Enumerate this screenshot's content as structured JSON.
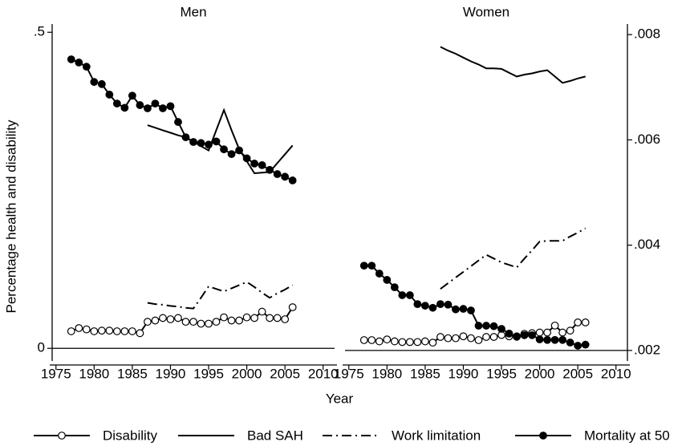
{
  "chart_data": [
    {
      "type": "line",
      "title": "Men",
      "x_label": "Year",
      "y_label": "Percentage health and disability",
      "x": [
        1977,
        1978,
        1979,
        1980,
        1981,
        1982,
        1983,
        1984,
        1985,
        1986,
        1987,
        1988,
        1989,
        1990,
        1991,
        1992,
        1993,
        1994,
        1995,
        1996,
        1997,
        1998,
        1999,
        2000,
        2001,
        2002,
        2003,
        2004,
        2005,
        2006
      ],
      "xlim": [
        1974.5,
        2011.5
      ],
      "xticks": [
        1975,
        1980,
        1985,
        1990,
        1995,
        2000,
        2005,
        2010
      ],
      "ylim": [
        -0.02,
        0.513
      ],
      "yticks": [
        {
          "value": 0.5,
          "label": ".5"
        },
        0
      ],
      "hline": 0,
      "series": [
        {
          "name": "Disability",
          "color": "#000000",
          "marker": "hollow",
          "dash": "solid",
          "values": [
            0.027,
            0.032,
            0.03,
            0.027,
            0.028,
            0.028,
            0.027,
            0.027,
            0.027,
            0.024,
            0.042,
            0.044,
            0.048,
            0.046,
            0.048,
            0.042,
            0.042,
            0.039,
            0.039,
            0.042,
            0.049,
            0.044,
            0.044,
            0.049,
            0.048,
            0.058,
            0.048,
            0.048,
            0.046,
            0.065
          ]
        },
        {
          "name": "Bad SAH",
          "color": "#000000",
          "marker": "none",
          "dash": "solid",
          "values": [
            null,
            null,
            null,
            null,
            null,
            null,
            null,
            null,
            null,
            null,
            0.353,
            0.349,
            0.345,
            0.341,
            0.337,
            0.334,
            0.327,
            0.32,
            0.313,
            0.345,
            0.377,
            0.345,
            0.315,
            0.296,
            0.277,
            0.278,
            0.279,
            0.293,
            0.307,
            0.321
          ]
        },
        {
          "name": "Work limitation",
          "color": "#000000",
          "marker": "none",
          "dash": "dash-dot",
          "values": [
            null,
            null,
            null,
            null,
            null,
            null,
            null,
            null,
            null,
            null,
            0.072,
            0.07,
            0.069,
            0.067,
            0.066,
            0.064,
            0.063,
            0.08,
            0.098,
            0.094,
            0.09,
            0.095,
            0.1,
            0.105,
            0.097,
            0.088,
            0.08,
            0.087,
            0.093,
            0.1
          ]
        },
        {
          "name": "Mortality at 50",
          "color": "#000000",
          "marker": "filled",
          "dash": "solid",
          "axis": "y2",
          "values": [
            0.00753,
            0.00747,
            0.00739,
            0.0071,
            0.00706,
            0.00686,
            0.00669,
            0.00661,
            0.00684,
            0.00666,
            0.0066,
            0.00669,
            0.0066,
            0.00664,
            0.00634,
            0.00605,
            0.00596,
            0.00594,
            0.00591,
            0.00597,
            0.00582,
            0.00573,
            0.0058,
            0.00565,
            0.00555,
            0.00552,
            0.00543,
            0.00535,
            0.0053,
            0.00523
          ]
        }
      ]
    },
    {
      "type": "line",
      "title": "Women",
      "x": [
        1977,
        1978,
        1979,
        1980,
        1981,
        1982,
        1983,
        1984,
        1985,
        1986,
        1987,
        1988,
        1989,
        1990,
        1991,
        1992,
        1993,
        1994,
        1995,
        1996,
        1997,
        1998,
        1999,
        2000,
        2001,
        2002,
        2003,
        2004,
        2005,
        2006
      ],
      "xlim": [
        1974.5,
        2011.5
      ],
      "xticks": [
        1975,
        1980,
        1985,
        1990,
        1995,
        2000,
        2005,
        2010
      ],
      "y2lim": [
        0.0018,
        0.0082
      ],
      "y2ticks": [
        {
          "value": 0.008,
          "label": ".008"
        },
        {
          "value": 0.006,
          "label": ".006"
        },
        {
          "value": 0.004,
          "label": ".004"
        },
        {
          "value": 0.002,
          "label": ".002"
        }
      ],
      "hline2": 0.002,
      "series": [
        {
          "color": "#000000",
          "marker": "hollow",
          "dash": "solid",
          "values": [
            0.013,
            0.013,
            0.011,
            0.014,
            0.011,
            0.01,
            0.01,
            0.01,
            0.011,
            0.009,
            0.018,
            0.016,
            0.016,
            0.019,
            0.016,
            0.013,
            0.018,
            0.018,
            0.021,
            0.019,
            0.019,
            0.023,
            0.024,
            0.025,
            0.025,
            0.036,
            0.025,
            0.028,
            0.041,
            0.041
          ]
        },
        {
          "color": "#000000",
          "marker": "none",
          "dash": "solid",
          "values": [
            null,
            null,
            null,
            null,
            null,
            null,
            null,
            null,
            null,
            null,
            0.477,
            0.471,
            0.466,
            0.46,
            0.454,
            0.449,
            0.443,
            0.443,
            0.442,
            0.436,
            0.43,
            0.433,
            0.435,
            0.438,
            0.44,
            0.43,
            0.42,
            0.423,
            0.427,
            0.43
          ]
        },
        {
          "color": "#000000",
          "marker": "none",
          "dash": "dash-dot",
          "values": [
            null,
            null,
            null,
            null,
            null,
            null,
            null,
            null,
            null,
            null,
            0.094,
            0.103,
            0.112,
            0.121,
            0.13,
            0.139,
            0.148,
            0.142,
            0.136,
            0.132,
            0.128,
            0.142,
            0.155,
            0.169,
            0.17,
            0.17,
            0.17,
            0.177,
            0.183,
            0.19
          ]
        },
        {
          "color": "#000000",
          "marker": "filled",
          "dash": "solid",
          "axis": "y2",
          "values": [
            0.00361,
            0.00361,
            0.00346,
            0.00334,
            0.0032,
            0.00305,
            0.00305,
            0.00288,
            0.00285,
            0.00281,
            0.00288,
            0.00287,
            0.00278,
            0.00279,
            0.00276,
            0.00247,
            0.00247,
            0.00246,
            0.00241,
            0.00232,
            0.00226,
            0.00229,
            0.00229,
            0.00221,
            0.0022,
            0.0022,
            0.0022,
            0.00215,
            0.00209,
            0.00211
          ]
        }
      ]
    }
  ]
}
